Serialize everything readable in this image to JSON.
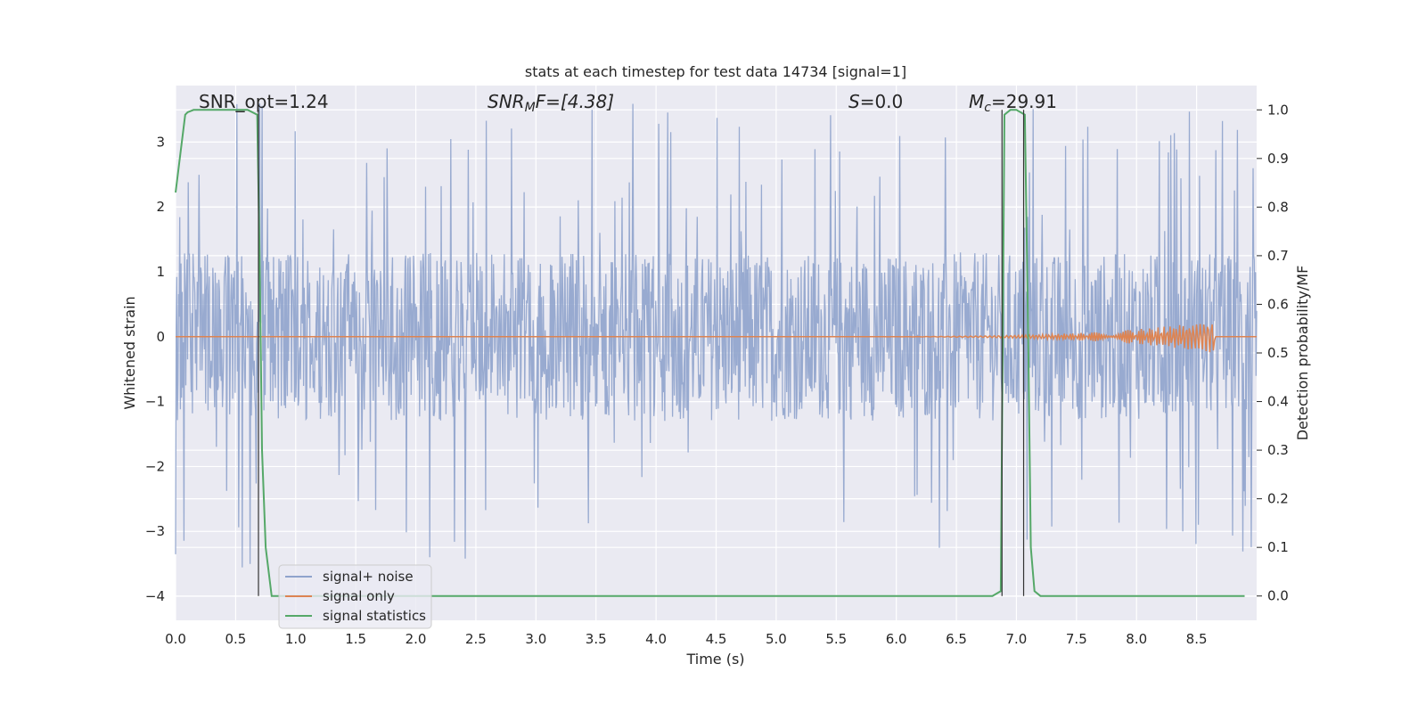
{
  "chart_data": {
    "type": "line",
    "title": "stats at each timestep for test data 14734 [signal=1]",
    "xlabel": "Time (s)",
    "ylabel": "Whitened strain",
    "y2label": "Detection probability/MF",
    "xlim": [
      0.0,
      9.0
    ],
    "ylim": [
      -4.37,
      3.87
    ],
    "y2lim": [
      -0.05,
      1.05
    ],
    "grid": true,
    "legend_position": "lower-left",
    "x_ticks": [
      "0.0",
      "0.5",
      "1.0",
      "1.5",
      "2.0",
      "2.5",
      "3.0",
      "3.5",
      "4.0",
      "4.5",
      "5.0",
      "5.5",
      "6.0",
      "6.5",
      "7.0",
      "7.5",
      "8.0",
      "8.5"
    ],
    "y_ticks": [
      "−4",
      "−3",
      "−2",
      "−1",
      "0",
      "1",
      "2",
      "3"
    ],
    "y2_ticks": [
      "0.0",
      "0.1",
      "0.2",
      "0.3",
      "0.4",
      "0.5",
      "0.6",
      "0.7",
      "0.8",
      "0.9",
      "1.0"
    ],
    "annotations": {
      "snr_opt": "SNR_opt=1.24",
      "snr_mf_main": "SNR",
      "snr_mf_sub": "M",
      "snr_mf_rest": "F=[4.38]",
      "s_italic": "S",
      "s_rest": "=0.0",
      "mc_main": "M",
      "mc_sub": "c",
      "mc_rest": "=29.91"
    },
    "series": [
      {
        "name": "signal+ noise",
        "color": "#8fa3cc",
        "axis": "left",
        "description_level": "noise band roughly ±1.3 with spikes to about ±3.5"
      },
      {
        "name": "signal only",
        "color": "#dd8452",
        "axis": "left",
        "chirp_peak_time": 8.65,
        "chirp_peak_amplitude": 0.25
      },
      {
        "name": "signal statistics",
        "color": "#55a868",
        "axis": "right",
        "x": [
          0.0,
          0.08,
          0.1,
          0.15,
          0.2,
          0.3,
          0.4,
          0.5,
          0.6,
          0.68,
          0.7,
          0.72,
          0.75,
          0.8,
          0.85,
          1.0,
          2.0,
          3.0,
          4.0,
          5.0,
          6.0,
          6.8,
          6.87,
          6.9,
          6.95,
          7.0,
          7.07,
          7.1,
          7.12,
          7.15,
          7.2,
          8.0,
          8.9
        ],
        "y": [
          0.83,
          0.99,
          0.995,
          1.0,
          1.0,
          1.0,
          1.0,
          1.0,
          1.0,
          0.99,
          0.7,
          0.3,
          0.1,
          0.0,
          0.0,
          0.0,
          0.0,
          0.0,
          0.0,
          0.0,
          0.0,
          0.0,
          0.01,
          0.99,
          1.0,
          1.0,
          0.99,
          0.5,
          0.1,
          0.01,
          0.0,
          0.0,
          0.0
        ]
      }
    ],
    "vertical_lines_x": [
      0.69,
      6.88,
      7.06
    ]
  }
}
